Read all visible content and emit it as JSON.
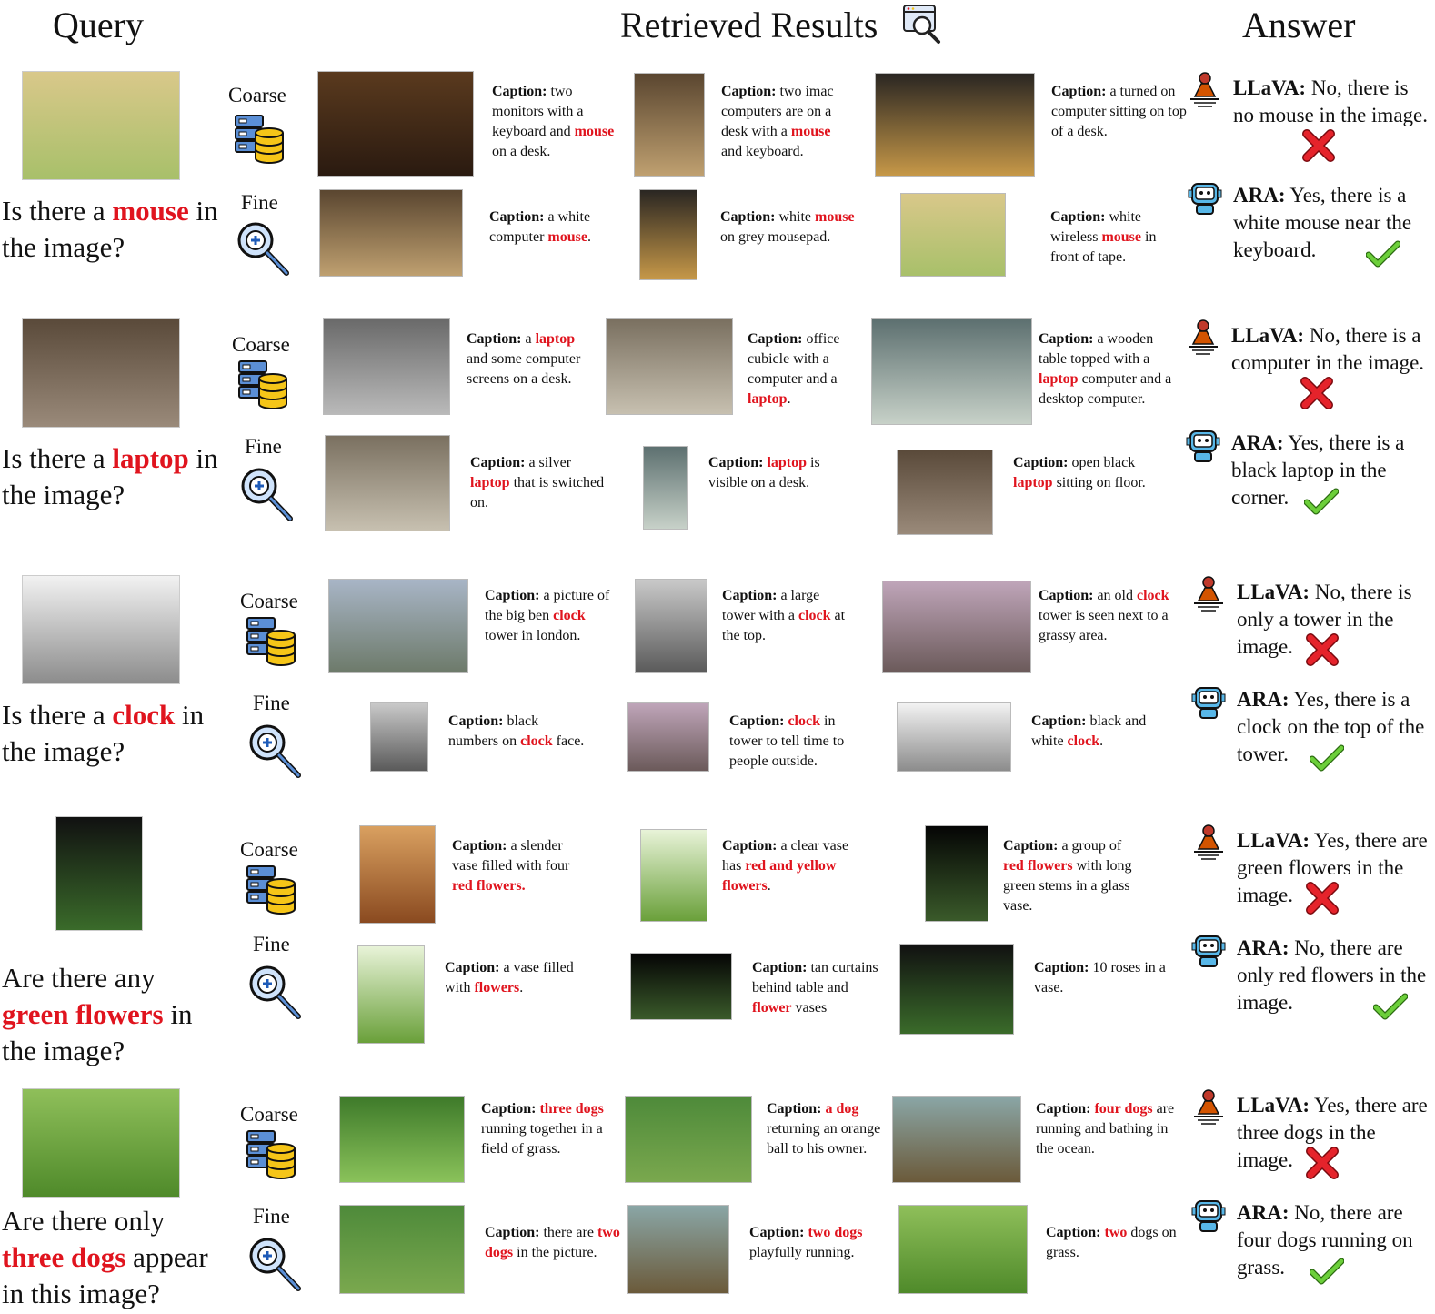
{
  "headers": {
    "query": "Query",
    "retrieved": "Retrieved Results",
    "answer": "Answer"
  },
  "colors": {
    "highlight": "#e0141e",
    "cross": "#e5232b",
    "check": "#6ccf3a",
    "db_yellow": "#f5c518",
    "db_blue": "#5b8fd6"
  },
  "levels": {
    "coarse": "Coarse",
    "fine": "Fine"
  },
  "blocks": [
    {
      "query": {
        "before": "Is there a ",
        "keyword": "mouse",
        "after": " in the image?"
      },
      "query_image_icon": "desktop-computer-photo",
      "coarse": [
        {
          "image": "dual-monitor-desk-photo",
          "label": "Caption:",
          "parts": [
            "two monitors with a keyboard and ",
            "mouse",
            " on a desk."
          ]
        },
        {
          "image": "imac-desk-photo",
          "label": "Caption:",
          "parts": [
            "two imac computers are on a desk with a ",
            "mouse",
            " and keyboard."
          ]
        },
        {
          "image": "monitor-desk-photo",
          "label": "Caption:",
          "parts": [
            "a turned on computer sitting on top of a desk.",
            "",
            ""
          ]
        }
      ],
      "fine": [
        {
          "image": "white-mouse-crop",
          "label": "Caption:",
          "parts": [
            "a white computer ",
            "mouse",
            "."
          ]
        },
        {
          "image": "mouse-on-pad-crop",
          "label": "Caption:",
          "parts": [
            "white ",
            "mouse",
            " on grey mousepad."
          ]
        },
        {
          "image": "wireless-mouse-crop",
          "label": "Caption:",
          "parts": [
            "white wireless ",
            "mouse",
            " in front of tape."
          ]
        }
      ],
      "llava": {
        "name": "LLaVA:",
        "text": " No, there is no mouse in the image."
      },
      "ara": {
        "name": "ARA:",
        "text": " Yes, there is a white mouse near the keyboard."
      }
    },
    {
      "query": {
        "before": "Is there a ",
        "keyword": "laptop",
        "after": " in the image?"
      },
      "query_image_icon": "office-desk-photo",
      "coarse": [
        {
          "image": "desk-screens-photo",
          "label": "Caption:",
          "parts": [
            "a ",
            "laptop",
            " and some computer screens on a desk."
          ]
        },
        {
          "image": "office-cubicle-photo",
          "label": "Caption:",
          "parts": [
            "office cubicle with a computer and a ",
            "laptop",
            "."
          ]
        },
        {
          "image": "wooden-table-office-photo",
          "label": "Caption:",
          "parts": [
            "a wooden table topped with a ",
            "laptop",
            " computer and a desktop computer."
          ]
        }
      ],
      "fine": [
        {
          "image": "silver-laptop-crop",
          "label": "Caption:",
          "parts": [
            "a silver ",
            "laptop",
            " that is switched on."
          ]
        },
        {
          "image": "laptop-edge-crop",
          "label": "Caption:",
          "parts": [
            "",
            "laptop",
            " is visible on a desk."
          ]
        },
        {
          "image": "black-laptop-crop",
          "label": "Caption:",
          "parts": [
            "open black ",
            "laptop",
            " sitting on floor."
          ]
        }
      ],
      "llava": {
        "name": "LLaVA:",
        "text": " No, there is a computer in the image."
      },
      "ara": {
        "name": "ARA:",
        "text": " Yes, there is a black laptop in the corner."
      }
    },
    {
      "query": {
        "before": "Is there a ",
        "keyword": "clock",
        "after": " in the image?"
      },
      "query_image_icon": "big-ben-photo",
      "coarse": [
        {
          "image": "big-ben-sky-photo",
          "label": "Caption:",
          "parts": [
            "a picture of the big ben ",
            "clock",
            " tower in london."
          ]
        },
        {
          "image": "tower-grayscale-photo",
          "label": "Caption:",
          "parts": [
            "a large tower with a ",
            "clock",
            " at the top."
          ]
        },
        {
          "image": "big-ben-street-photo",
          "label": "Caption:",
          "parts": [
            "an old ",
            "clock",
            " tower is seen next to a grassy area."
          ]
        }
      ],
      "fine": [
        {
          "image": "clock-numbers-crop",
          "label": "Caption:",
          "parts": [
            "black numbers on ",
            "clock",
            " face."
          ]
        },
        {
          "image": "tower-clock-crop",
          "label": "Caption:",
          "parts": [
            "",
            "clock",
            " in tower to tell time to people outside."
          ]
        },
        {
          "image": "pixelated-clock-crop",
          "label": "Caption:",
          "parts": [
            "black and white ",
            "clock",
            "."
          ]
        }
      ],
      "llava": {
        "name": "LLaVA:",
        "text": " No, there is only a tower in the image."
      },
      "ara": {
        "name": "ARA:",
        "text": " Yes, there is a clock on the top of the tower."
      }
    },
    {
      "query": {
        "before": "Are there any ",
        "keyword": "green flowers",
        "after": " in the image?"
      },
      "query_image_icon": "tulips-vase-photo",
      "coarse": [
        {
          "image": "slender-vase-photo",
          "label": "Caption:",
          "parts": [
            "a slender vase filled with four ",
            "red flowers.",
            ""
          ]
        },
        {
          "image": "clear-vase-photo",
          "label": "Caption:",
          "parts": [
            "a clear vase has ",
            "red and yellow flowers",
            "."
          ]
        },
        {
          "image": "red-flowers-glass-photo",
          "label": "Caption:",
          "parts": [
            "a group of ",
            "red flowers",
            " with long green stems in a glass vase."
          ]
        }
      ],
      "fine": [
        {
          "image": "tulip-vase-crop",
          "label": "Caption:",
          "parts": [
            "a vase filled with ",
            "flowers",
            "."
          ]
        },
        {
          "image": "curtain-vases-crop",
          "label": "Caption:",
          "parts": [
            "tan curtains behind table and ",
            "flower",
            " vases"
          ]
        },
        {
          "image": "roses-silhouette-crop",
          "label": "Caption:",
          "parts": [
            "10 roses in a vase.",
            "",
            ""
          ]
        }
      ],
      "llava": {
        "name": "LLaVA:",
        "text": " Yes, there are green flowers in the image."
      },
      "ara": {
        "name": "ARA:",
        "text": " No, there are only red flowers in the image."
      }
    },
    {
      "query": {
        "before": "Are there only ",
        "keyword": "three dogs",
        "after": " appear in this image?"
      },
      "query_image_icon": "dogs-field-photo",
      "coarse": [
        {
          "image": "three-dogs-grass-photo",
          "label": "Caption:",
          "parts": [
            "",
            "three dogs",
            " running together in a field of grass."
          ]
        },
        {
          "image": "dog-ball-photo",
          "label": "Caption:",
          "parts": [
            "",
            "a dog",
            " returning an orange ball to his owner."
          ]
        },
        {
          "image": "dogs-ocean-photo",
          "label": "Caption:",
          "parts": [
            "",
            "four dogs",
            " are running and bathing in the ocean."
          ]
        }
      ],
      "fine": [
        {
          "image": "two-dogs-crop",
          "label": "Caption:",
          "parts": [
            "there are ",
            "two dogs",
            " in the picture."
          ]
        },
        {
          "image": "playful-dogs-crop",
          "label": "Caption:",
          "parts": [
            "",
            "two dogs",
            " playfully running."
          ]
        },
        {
          "image": "dogs-grass-crop",
          "label": "Caption:",
          "parts": [
            "",
            "two",
            " dogs on grass."
          ]
        }
      ],
      "llava": {
        "name": "LLaVA:",
        "text": " Yes, there are three dogs in the image."
      },
      "ara": {
        "name": "ARA:",
        "text": " No, there are four dogs running on grass."
      }
    }
  ]
}
